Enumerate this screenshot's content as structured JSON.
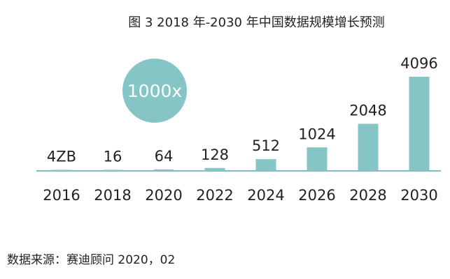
{
  "chart_data": {
    "type": "bar",
    "title": "图 3   2018 年-2030 年中国数据规模增长预测",
    "categories": [
      "2016",
      "2018",
      "2020",
      "2022",
      "2024",
      "2026",
      "2028",
      "2030"
    ],
    "values": [
      4,
      16,
      64,
      128,
      512,
      1024,
      2048,
      4096
    ],
    "value_labels": [
      "4ZB",
      "16",
      "64",
      "128",
      "512",
      "1024",
      "2048",
      "4096"
    ],
    "unit": "ZB",
    "annotation": "1000x",
    "xlabel": "",
    "ylabel": "",
    "ylim": [
      0,
      4096
    ],
    "grid": false,
    "bar_color": "#86c5c6",
    "axis_color": "#5a9fb0"
  },
  "source": "数据来源：赛迪顾问    2020，02"
}
